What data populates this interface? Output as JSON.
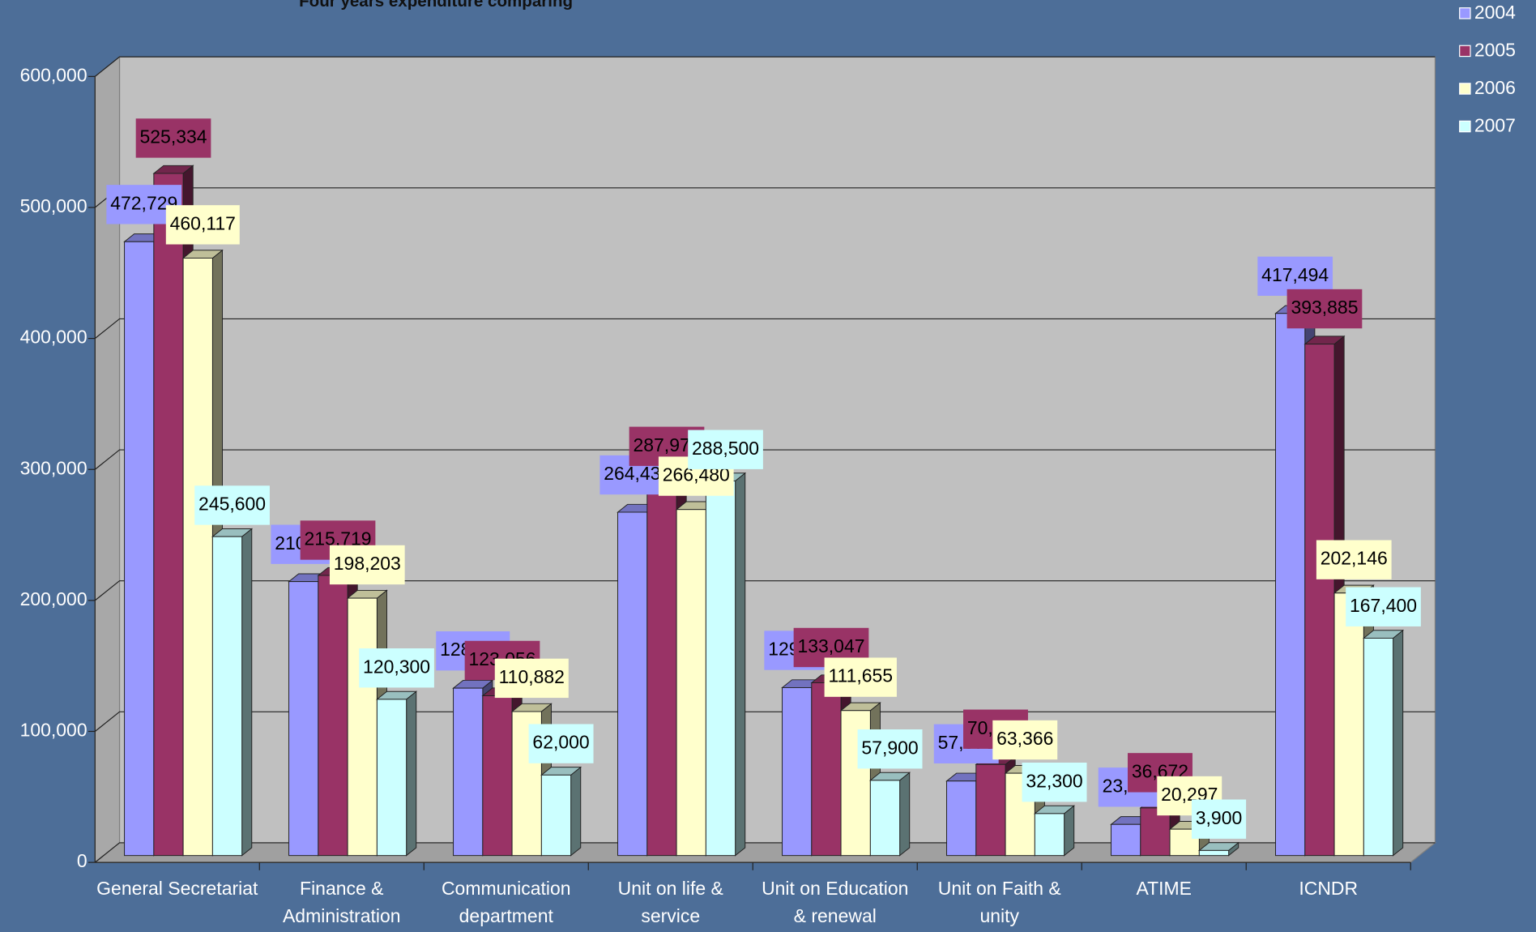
{
  "chart_data": {
    "type": "bar3d",
    "title": "Four years expenditure comparing",
    "categories": [
      "General Secretariat",
      "Finance & Administration",
      "Communication department",
      "Unit on life & service",
      "Unit on Education & renewal",
      "Unit on Faith & unity",
      "ATIME",
      "ICNDR"
    ],
    "series": [
      {
        "name": "2004",
        "color": "#9999ff",
        "values": [
          472729,
          210968,
          128911,
          264433,
          129312,
          57370,
          23966,
          417494
        ],
        "value_labels": [
          "472,729",
          "210,968",
          "128,911",
          "264,433",
          "129,312",
          "57,370",
          "23,966",
          "417,494"
        ]
      },
      {
        "name": "2005",
        "color": "#993366",
        "values": [
          525334,
          215719,
          123056,
          287976,
          133047,
          70142,
          36672,
          393885
        ],
        "value_labels": [
          "525,334",
          "215,719",
          "123,056",
          "287,976",
          "133,047",
          "70,142",
          "36,672",
          "393,885"
        ]
      },
      {
        "name": "2006",
        "color": "#ffffcc",
        "values": [
          460117,
          198203,
          110882,
          266480,
          111655,
          63366,
          20297,
          202146
        ],
        "value_labels": [
          "460,117",
          "198,203",
          "110,882",
          "266,480",
          "111,655",
          "63,366",
          "20,297",
          "202,146"
        ]
      },
      {
        "name": "2007",
        "color": "#ccffff",
        "values": [
          245600,
          120300,
          62000,
          288500,
          57900,
          32300,
          3900,
          167400
        ],
        "value_labels": [
          "245,600",
          "120,300",
          "62,000",
          "288,500",
          "57,900",
          "32,300",
          "3,900",
          "167,400"
        ]
      }
    ],
    "ylim": [
      0,
      600000
    ],
    "yticks": [
      0,
      {
        "value": 100000,
        "label": "100,000"
      },
      {
        "value": 200000,
        "label": "200,000"
      },
      {
        "value": 300000,
        "label": "300,000"
      },
      {
        "value": 400000,
        "label": "400,000"
      },
      {
        "value": 500000,
        "label": "500,000"
      },
      {
        "value": 600000,
        "label": "600,000"
      }
    ],
    "grid": true,
    "legend": "top-right"
  }
}
